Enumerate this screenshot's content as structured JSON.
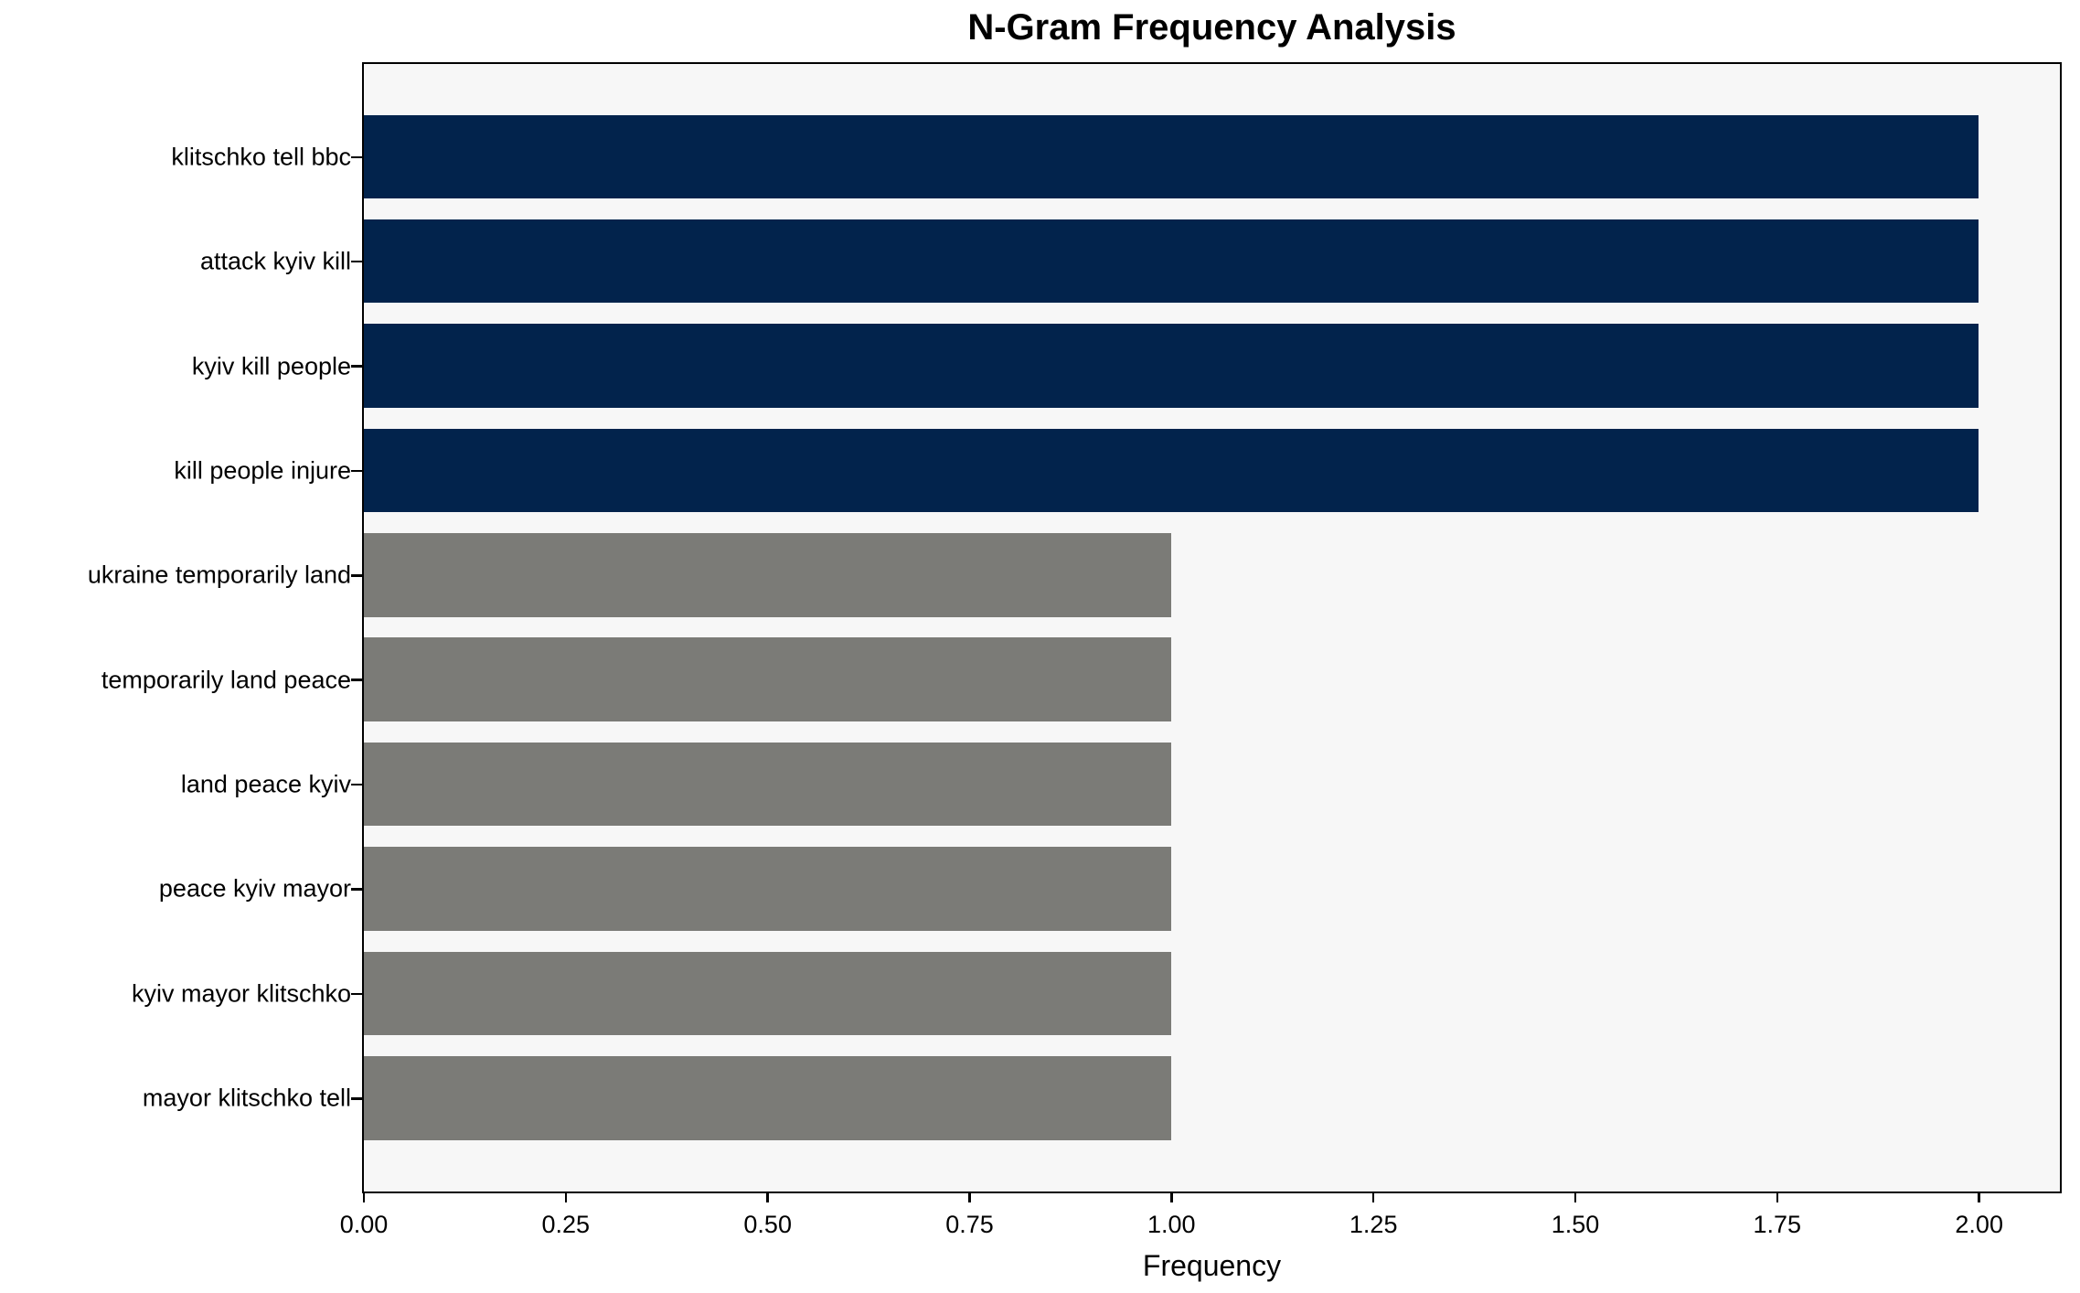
{
  "chart_data": {
    "type": "bar",
    "orientation": "horizontal",
    "title": "N-Gram Frequency Analysis",
    "xlabel": "Frequency",
    "ylabel": "",
    "categories": [
      "klitschko tell bbc",
      "attack kyiv kill",
      "kyiv kill people",
      "kill people injure",
      "ukraine temporarily land",
      "temporarily land peace",
      "land peace kyiv",
      "peace kyiv mayor",
      "kyiv mayor klitschko",
      "mayor klitschko tell"
    ],
    "values": [
      2,
      2,
      2,
      2,
      1,
      1,
      1,
      1,
      1,
      1
    ],
    "bar_colors": [
      "#02234c",
      "#02234c",
      "#02234c",
      "#02234c",
      "#7b7b77",
      "#7b7b77",
      "#7b7b77",
      "#7b7b77",
      "#7b7b77",
      "#7b7b77"
    ],
    "xlim": [
      0,
      2.1
    ],
    "xticks": [
      {
        "value": 0.0,
        "label": "0.00"
      },
      {
        "value": 0.25,
        "label": "0.25"
      },
      {
        "value": 0.5,
        "label": "0.50"
      },
      {
        "value": 0.75,
        "label": "0.75"
      },
      {
        "value": 1.0,
        "label": "1.00"
      },
      {
        "value": 1.25,
        "label": "1.25"
      },
      {
        "value": 1.5,
        "label": "1.50"
      },
      {
        "value": 1.75,
        "label": "1.75"
      },
      {
        "value": 2.0,
        "label": "2.00"
      }
    ],
    "grid": false,
    "legend": null,
    "colors": {
      "high_freq_bar": "#02234c",
      "low_freq_bar": "#7b7b77",
      "plot_background": "#f7f7f7",
      "figure_background": "#ffffff",
      "spine": "#000000",
      "text": "#000000"
    }
  }
}
